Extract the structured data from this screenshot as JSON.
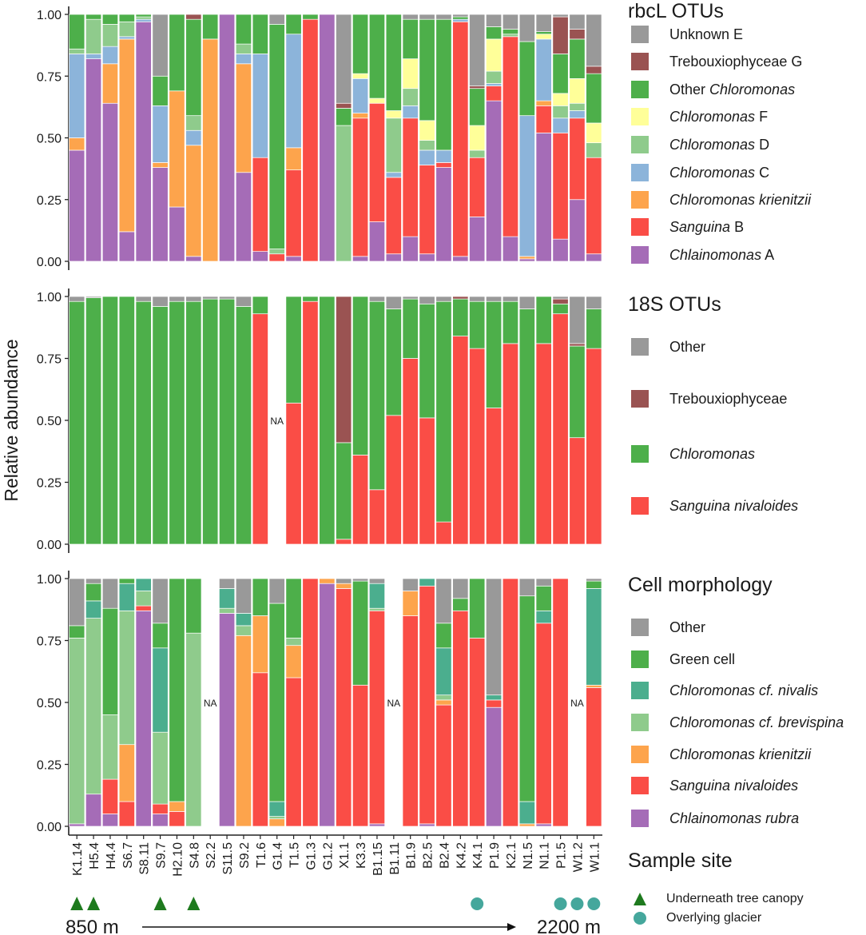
{
  "colors": {
    "unknown_e": "#999999",
    "treboux": "#9A5352",
    "chloro": "#4DAF4A",
    "chloro_f": "#FFFF99",
    "chloro_d": "#8FCB8C",
    "chloro_c": "#8CB4DA",
    "krien": "#FDA44C",
    "sang": "#FA4D46",
    "chlain": "#A56CB7",
    "nivalis": "#4BAE8E"
  },
  "y_axis_label": "Relative abundance",
  "tick_labels": [
    "0.00",
    "0.25",
    "0.50",
    "0.75",
    "1.00"
  ],
  "na_label": "NA",
  "legend": {
    "rbcl": {
      "title": "rbcL OTUs",
      "items": [
        {
          "key": "unknown_e",
          "parts": [
            {
              "t": "Unknown E"
            }
          ]
        },
        {
          "key": "treboux",
          "parts": [
            {
              "t": "Trebouxiophyceae G"
            }
          ]
        },
        {
          "key": "chloro",
          "parts": [
            {
              "t": "Other "
            },
            {
              "t": "Chloromonas",
              "i": true
            }
          ]
        },
        {
          "key": "chloro_f",
          "parts": [
            {
              "t": "Chloromonas",
              "i": true
            },
            {
              "t": " F"
            }
          ]
        },
        {
          "key": "chloro_d",
          "parts": [
            {
              "t": "Chloromonas",
              "i": true
            },
            {
              "t": " D"
            }
          ]
        },
        {
          "key": "chloro_c",
          "parts": [
            {
              "t": "Chloromonas",
              "i": true
            },
            {
              "t": " C"
            }
          ]
        },
        {
          "key": "krien",
          "parts": [
            {
              "t": "Chloromonas krienitzii",
              "i": true
            }
          ]
        },
        {
          "key": "sang",
          "parts": [
            {
              "t": "Sanguina",
              "i": true
            },
            {
              "t": " B"
            }
          ]
        },
        {
          "key": "chlain",
          "parts": [
            {
              "t": "Chlainomonas",
              "i": true
            },
            {
              "t": " A"
            }
          ]
        }
      ]
    },
    "s18": {
      "title": "18S OTUs",
      "items": [
        {
          "key": "unknown_e",
          "parts": [
            {
              "t": "Other"
            }
          ]
        },
        {
          "key": "treboux",
          "parts": [
            {
              "t": "Trebouxiophyceae"
            }
          ]
        },
        {
          "key": "chloro",
          "parts": [
            {
              "t": "Chloromonas",
              "i": true
            }
          ]
        },
        {
          "key": "sang",
          "parts": [
            {
              "t": "Sanguina nivaloides",
              "i": true
            }
          ]
        }
      ]
    },
    "morph": {
      "title": "Cell morphology",
      "items": [
        {
          "key": "unknown_e",
          "parts": [
            {
              "t": "Other"
            }
          ]
        },
        {
          "key": "chloro",
          "parts": [
            {
              "t": "Green cell"
            }
          ]
        },
        {
          "key": "nivalis",
          "parts": [
            {
              "t": "Chloromonas cf. nivalis",
              "i": true
            }
          ]
        },
        {
          "key": "chloro_d",
          "parts": [
            {
              "t": "Chloromonas cf. brevispina",
              "i": true
            }
          ]
        },
        {
          "key": "krien",
          "parts": [
            {
              "t": "Chloromonas krienitzii",
              "i": true
            }
          ]
        },
        {
          "key": "sang",
          "parts": [
            {
              "t": "Sanguina nivaloides",
              "i": true
            }
          ]
        },
        {
          "key": "chlain",
          "parts": [
            {
              "t": "Chlainomonas rubra",
              "i": true
            }
          ]
        }
      ]
    },
    "site": {
      "title": "Sample site",
      "items": [
        {
          "shape": "triangle",
          "label": "Underneath tree canopy"
        },
        {
          "shape": "circle",
          "label": "Overlying glacier"
        }
      ]
    }
  },
  "elevation": {
    "start": "850 m",
    "end": "2200 m"
  },
  "chart_data": [
    {
      "type": "bar",
      "title": "rbcL OTUs",
      "ylabel": "Relative abundance",
      "ylim": [
        0,
        1
      ],
      "stack_order": [
        "chlain",
        "sang",
        "krien",
        "chloro_c",
        "chloro_d",
        "chloro_f",
        "chloro",
        "treboux",
        "unknown_e"
      ],
      "categories": [
        "K1.14",
        "H5.4",
        "H4.4",
        "S6.7",
        "S8.11",
        "S9.7",
        "H2.10",
        "S4.8",
        "S2.2",
        "S11.5",
        "S9.2",
        "T1.6",
        "G1.4",
        "T1.5",
        "G1.3",
        "G1.2",
        "X1.1",
        "K3.3",
        "B1.15",
        "B1.11",
        "B1.9",
        "B2.5",
        "B2.4",
        "K4.2",
        "K4.1",
        "P1.9",
        "K2.1",
        "N1.5",
        "N1.1",
        "P1.5",
        "W1.2",
        "W1.1"
      ],
      "bars": [
        {
          "chlain": 0.45,
          "krien": 0.05,
          "chloro_c": 0.34,
          "chloro_d": 0.02,
          "chloro": 0.14
        },
        {
          "chlain": 0.82,
          "chloro_c": 0.02,
          "chloro_d": 0.14,
          "chloro": 0.02
        },
        {
          "chlain": 0.64,
          "krien": 0.16,
          "chloro_c": 0.07,
          "chloro_d": 0.09,
          "chloro": 0.04
        },
        {
          "chlain": 0.12,
          "krien": 0.78,
          "chloro_c": 0.01,
          "chloro_d": 0.06,
          "chloro": 0.03
        },
        {
          "chlain": 0.97,
          "chloro_d": 0.01,
          "chloro_c": 0.01,
          "chloro": 0.01
        },
        {
          "chlain": 0.38,
          "krien": 0.02,
          "chloro_c": 0.23,
          "chloro": 0.12,
          "unknown_e": 0.25
        },
        {
          "chlain": 0.22,
          "krien": 0.47,
          "chloro": 0.31
        },
        {
          "chlain": 0.02,
          "krien": 0.45,
          "chloro_c": 0.06,
          "chloro_d": 0.06,
          "chloro": 0.39,
          "treboux": 0.02
        },
        {
          "krien": 0.9,
          "chloro": 0.1
        },
        {
          "chlain": 1.0
        },
        {
          "chlain": 0.36,
          "krien": 0.44,
          "chloro_c": 0.04,
          "chloro_d": 0.04,
          "chloro": 0.12
        },
        {
          "chlain": 0.04,
          "sang": 0.38,
          "chloro_c": 0.42,
          "chloro": 0.16
        },
        {
          "sang": 0.03,
          "chloro_d": 0.02,
          "chloro": 0.91,
          "unknown_e": 0.04
        },
        {
          "chlain": 0.02,
          "sang": 0.35,
          "krien": 0.09,
          "chloro_c": 0.46,
          "chloro": 0.08
        },
        {
          "sang": 0.98,
          "chloro": 0.02
        },
        {
          "chlain": 1.0
        },
        {
          "chloro_d": 0.55,
          "chloro": 0.07,
          "treboux": 0.02,
          "unknown_e": 0.36
        },
        {
          "chlain": 0.02,
          "sang": 0.56,
          "krien": 0.02,
          "chloro_c": 0.14,
          "chloro_f": 0.02,
          "chloro": 0.24
        },
        {
          "chlain": 0.16,
          "sang": 0.48,
          "chloro_f": 0.02,
          "chloro": 0.34
        },
        {
          "chlain": 0.03,
          "sang": 0.31,
          "chloro_c": 0.02,
          "chloro_d": 0.22,
          "chloro_f": 0.03,
          "chloro": 0.39
        },
        {
          "chlain": 0.1,
          "sang": 0.48,
          "chloro_c": 0.05,
          "chloro_d": 0.07,
          "chloro_f": 0.12,
          "chloro": 0.16,
          "unknown_e": 0.02
        },
        {
          "chlain": 0.03,
          "sang": 0.36,
          "chloro_c": 0.06,
          "chloro_d": 0.04,
          "chloro_f": 0.08,
          "chloro": 0.41,
          "unknown_e": 0.02
        },
        {
          "chlain": 0.38,
          "sang": 0.02,
          "chloro_c": 0.05,
          "chloro": 0.53,
          "unknown_e": 0.02
        },
        {
          "chlain": 0.02,
          "sang": 0.95,
          "chloro": 0.01,
          "chloro_c": 0.01,
          "unknown_e": 0.01
        },
        {
          "chlain": 0.18,
          "sang": 0.24,
          "chloro_d": 0.03,
          "chloro_f": 0.1,
          "chloro": 0.15,
          "treboux": 0.01,
          "unknown_e": 0.29
        },
        {
          "chlain": 0.65,
          "sang": 0.06,
          "chloro_c": 0.01,
          "chloro_d": 0.05,
          "chloro_f": 0.13,
          "chloro": 0.05,
          "unknown_e": 0.05
        },
        {
          "chlain": 0.1,
          "sang": 0.81,
          "chloro_d": 0.01,
          "chloro": 0.02,
          "unknown_e": 0.06
        },
        {
          "chlain": 0.01,
          "krien": 0.01,
          "chloro_c": 0.57,
          "chloro": 0.3,
          "unknown_e": 0.11
        },
        {
          "chlain": 0.52,
          "sang": 0.11,
          "krien": 0.02,
          "chloro_c": 0.25,
          "chloro_f": 0.02,
          "chloro": 0.01,
          "unknown_e": 0.07
        },
        {
          "chlain": 0.09,
          "sang": 0.43,
          "chloro_c": 0.06,
          "chloro_d": 0.05,
          "chloro_f": 0.05,
          "chloro": 0.16,
          "treboux": 0.15,
          "unknown_e": 0.01
        },
        {
          "chlain": 0.25,
          "sang": 0.33,
          "chloro_c": 0.03,
          "chloro_d": 0.03,
          "chloro_f": 0.1,
          "chloro": 0.16,
          "treboux": 0.04,
          "unknown_e": 0.06
        },
        {
          "chlain": 0.03,
          "sang": 0.39,
          "chloro_d": 0.06,
          "chloro_f": 0.08,
          "chloro": 0.2,
          "treboux": 0.03,
          "unknown_e": 0.21
        }
      ]
    },
    {
      "type": "bar",
      "title": "18S OTUs",
      "ylabel": "Relative abundance",
      "ylim": [
        0,
        1
      ],
      "stack_order": [
        "sang",
        "chloro",
        "treboux",
        "unknown_e"
      ],
      "categories": [
        "K1.14",
        "H5.4",
        "H4.4",
        "S6.7",
        "S8.11",
        "S9.7",
        "H2.10",
        "S4.8",
        "S2.2",
        "S11.5",
        "S9.2",
        "T1.6",
        "G1.4",
        "T1.5",
        "G1.3",
        "G1.2",
        "X1.1",
        "K3.3",
        "B1.15",
        "B1.11",
        "B1.9",
        "B2.5",
        "B2.4",
        "K4.2",
        "K4.1",
        "P1.9",
        "K2.1",
        "N1.5",
        "N1.1",
        "P1.5",
        "W1.2",
        "W1.1"
      ],
      "bars": [
        {
          "chloro": 0.98,
          "unknown_e": 0.02
        },
        {
          "chloro": 0.995,
          "unknown_e": 0.005
        },
        {
          "chloro": 1.0
        },
        {
          "chloro": 1.0
        },
        {
          "chloro": 0.98,
          "unknown_e": 0.02
        },
        {
          "chloro": 0.96,
          "unknown_e": 0.04
        },
        {
          "chloro": 0.98,
          "unknown_e": 0.02
        },
        {
          "chloro": 0.98,
          "unknown_e": 0.02
        },
        {
          "chloro": 0.99,
          "unknown_e": 0.01
        },
        {
          "chloro": 0.99,
          "unknown_e": 0.01
        },
        {
          "chloro": 0.96,
          "unknown_e": 0.04
        },
        {
          "sang": 0.93,
          "chloro": 0.07
        },
        null,
        {
          "sang": 0.57,
          "chloro": 0.43
        },
        {
          "sang": 0.98,
          "chloro": 0.02
        },
        {
          "chloro": 1.0
        },
        {
          "sang": 0.02,
          "chloro": 0.39,
          "treboux": 0.59
        },
        {
          "sang": 0.36,
          "chloro": 0.64
        },
        {
          "sang": 0.22,
          "chloro": 0.76,
          "unknown_e": 0.02
        },
        {
          "sang": 0.52,
          "chloro": 0.43,
          "unknown_e": 0.05
        },
        {
          "sang": 0.75,
          "chloro": 0.24,
          "unknown_e": 0.01
        },
        {
          "sang": 0.51,
          "chloro": 0.46,
          "unknown_e": 0.03
        },
        {
          "sang": 0.09,
          "chloro": 0.89,
          "unknown_e": 0.02
        },
        {
          "sang": 0.84,
          "chloro": 0.15,
          "treboux": 0.01
        },
        {
          "sang": 0.79,
          "chloro": 0.19,
          "unknown_e": 0.02
        },
        {
          "sang": 0.55,
          "chloro": 0.43,
          "unknown_e": 0.02
        },
        {
          "sang": 0.81,
          "chloro": 0.17,
          "unknown_e": 0.02
        },
        {
          "chloro": 0.95,
          "unknown_e": 0.05
        },
        {
          "sang": 0.81,
          "chloro": 0.19
        },
        {
          "sang": 0.93,
          "chloro": 0.04,
          "treboux": 0.02,
          "unknown_e": 0.01
        },
        {
          "sang": 0.43,
          "chloro": 0.37,
          "treboux": 0.01,
          "unknown_e": 0.19
        },
        {
          "sang": 0.79,
          "chloro": 0.16,
          "unknown_e": 0.05
        }
      ]
    },
    {
      "type": "bar",
      "title": "Cell morphology",
      "ylabel": "Relative abundance",
      "ylim": [
        0,
        1
      ],
      "stack_order": [
        "chlain",
        "sang",
        "krien",
        "chloro_d",
        "nivalis",
        "chloro",
        "unknown_e"
      ],
      "categories": [
        "K1.14",
        "H5.4",
        "H4.4",
        "S6.7",
        "S8.11",
        "S9.7",
        "H2.10",
        "S4.8",
        "S2.2",
        "S11.5",
        "S9.2",
        "T1.6",
        "G1.4",
        "T1.5",
        "G1.3",
        "G1.2",
        "X1.1",
        "K3.3",
        "B1.15",
        "B1.11",
        "B1.9",
        "B2.5",
        "B2.4",
        "K4.2",
        "K4.1",
        "P1.9",
        "K2.1",
        "N1.5",
        "N1.1",
        "P1.5",
        "W1.2",
        "W1.1"
      ],
      "bars": [
        {
          "chlain": 0.01,
          "chloro_d": 0.75,
          "chloro": 0.05,
          "unknown_e": 0.19
        },
        {
          "chlain": 0.13,
          "chloro_d": 0.71,
          "nivalis": 0.07,
          "chloro": 0.07,
          "unknown_e": 0.02
        },
        {
          "chlain": 0.05,
          "sang": 0.14,
          "chloro_d": 0.26,
          "chloro": 0.43,
          "unknown_e": 0.12
        },
        {
          "sang": 0.1,
          "krien": 0.23,
          "chloro_d": 0.54,
          "nivalis": 0.11,
          "chloro": 0.02
        },
        {
          "chlain": 0.87,
          "sang": 0.02,
          "chloro_d": 0.06,
          "nivalis": 0.05
        },
        {
          "chlain": 0.05,
          "sang": 0.04,
          "chloro_d": 0.29,
          "nivalis": 0.34,
          "chloro": 0.1,
          "unknown_e": 0.18
        },
        {
          "sang": 0.06,
          "krien": 0.04,
          "chloro": 0.9
        },
        {
          "chloro_d": 0.78,
          "chloro": 0.22
        },
        null,
        {
          "chlain": 0.86,
          "chloro_d": 0.02,
          "nivalis": 0.08,
          "unknown_e": 0.04
        },
        {
          "krien": 0.77,
          "chloro_d": 0.04,
          "nivalis": 0.05,
          "unknown_e": 0.14
        },
        {
          "sang": 0.62,
          "krien": 0.23,
          "chloro": 0.15
        },
        {
          "krien": 0.03,
          "chloro_d": 0.01,
          "nivalis": 0.06,
          "chloro": 0.8,
          "unknown_e": 0.1
        },
        {
          "sang": 0.6,
          "krien": 0.13,
          "chloro_d": 0.03,
          "chloro": 0.24
        },
        {
          "sang": 1.0
        },
        {
          "chlain": 0.98,
          "krien": 0.02
        },
        {
          "sang": 0.96,
          "krien": 0.02,
          "unknown_e": 0.02
        },
        {
          "sang": 0.57,
          "chloro": 0.42,
          "unknown_e": 0.01
        },
        {
          "chlain": 0.01,
          "sang": 0.86,
          "chloro_d": 0.01,
          "nivalis": 0.1,
          "unknown_e": 0.02
        },
        null,
        {
          "sang": 0.85,
          "krien": 0.1,
          "unknown_e": 0.05
        },
        {
          "chlain": 0.01,
          "sang": 0.96,
          "nivalis": 0.03
        },
        {
          "sang": 0.49,
          "krien": 0.02,
          "chloro_d": 0.02,
          "nivalis": 0.19,
          "chloro": 0.1,
          "unknown_e": 0.18
        },
        {
          "sang": 0.87,
          "chloro": 0.05,
          "unknown_e": 0.08
        },
        {
          "sang": 0.76,
          "chloro": 0.24
        },
        {
          "chlain": 0.48,
          "sang": 0.03,
          "nivalis": 0.02,
          "unknown_e": 0.47
        },
        {
          "sang": 1.0
        },
        {
          "krien": 0.01,
          "nivalis": 0.09,
          "chloro": 0.83,
          "unknown_e": 0.07
        },
        {
          "chlain": 0.01,
          "sang": 0.81,
          "nivalis": 0.05,
          "chloro": 0.1,
          "unknown_e": 0.03
        },
        {
          "sang": 1.0
        },
        null,
        {
          "sang": 0.56,
          "krien": 0.01,
          "nivalis": 0.39,
          "chloro": 0.03,
          "unknown_e": 0.01
        }
      ]
    }
  ],
  "site_markers": [
    {
      "sample": "K1.14",
      "shape": "triangle"
    },
    {
      "sample": "H5.4",
      "shape": "triangle"
    },
    {
      "sample": "S9.7",
      "shape": "triangle"
    },
    {
      "sample": "S4.8",
      "shape": "triangle"
    },
    {
      "sample": "K4.1",
      "shape": "circle"
    },
    {
      "sample": "P1.5",
      "shape": "circle"
    },
    {
      "sample": "W1.2",
      "shape": "circle"
    },
    {
      "sample": "W1.1",
      "shape": "circle"
    }
  ]
}
